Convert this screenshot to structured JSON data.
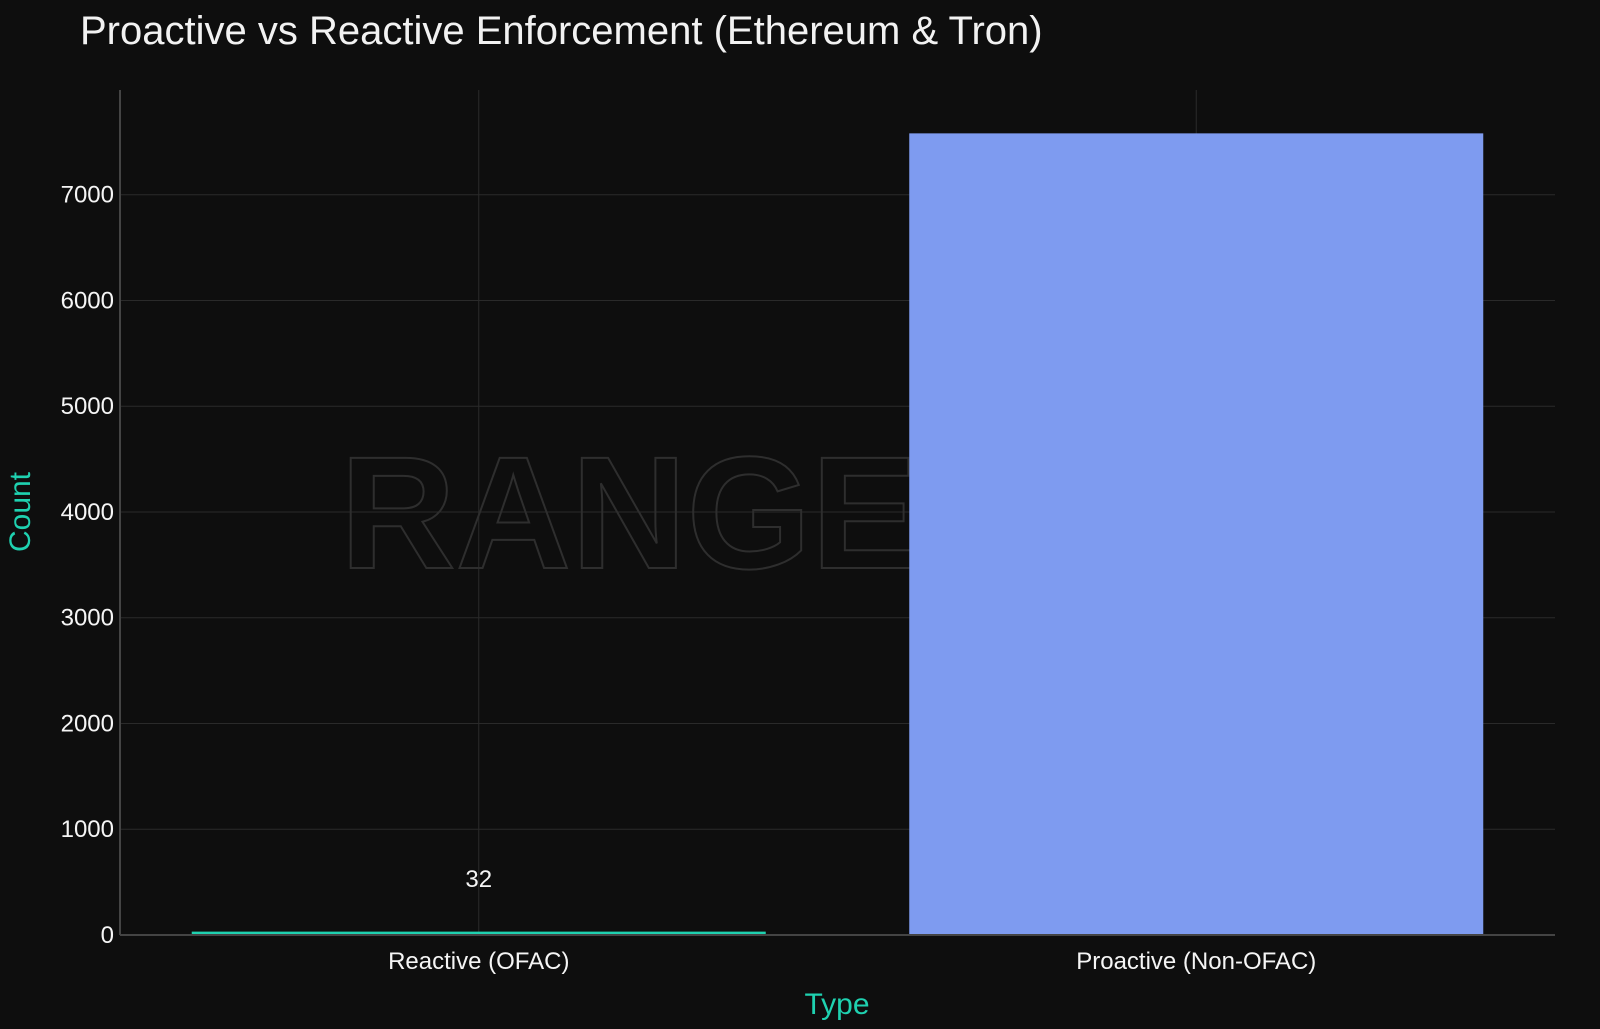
{
  "chart_data": {
    "type": "bar",
    "title": "Proactive vs Reactive Enforcement (Ethereum & Tron)",
    "xlabel": "Type",
    "ylabel": "Count",
    "categories": [
      "Reactive (OFAC)",
      "Proactive (Non-OFAC)"
    ],
    "values": [
      32,
      7580
    ],
    "data_labels": [
      "32",
      ""
    ],
    "colors": [
      "#1fd1b0",
      "#7e9bf0"
    ],
    "ylim": [
      0,
      7990
    ],
    "yticks": [
      0,
      1000,
      2000,
      3000,
      4000,
      5000,
      6000,
      7000
    ],
    "grid": true,
    "watermark": "RANGE"
  },
  "theme": {
    "background": "#0e0e0e",
    "grid_color": "#2a2a2a",
    "axis_line_color": "#444444",
    "text_color": "#f5f5f5",
    "axis_label_color": "#1fd1b0"
  }
}
